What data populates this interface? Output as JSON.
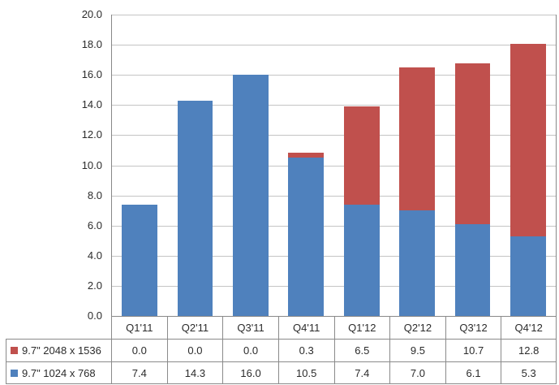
{
  "chart_data": {
    "type": "bar",
    "stacked": true,
    "title": "",
    "xlabel": "",
    "ylabel": "",
    "categories": [
      "Q1'11",
      "Q2'11",
      "Q3'11",
      "Q4'11",
      "Q1'12",
      "Q2'12",
      "Q3'12",
      "Q4'12"
    ],
    "series": [
      {
        "name": "9.7\" 2048 x 1536",
        "color": "#C0504D",
        "stack_position": "top",
        "values": [
          0.0,
          0.0,
          0.0,
          0.3,
          6.5,
          9.5,
          10.7,
          12.8
        ]
      },
      {
        "name": "9.7\" 1024 x 768",
        "color": "#4F81BD",
        "stack_position": "bottom",
        "values": [
          7.4,
          14.3,
          16.0,
          10.5,
          7.4,
          7.0,
          6.1,
          5.3
        ]
      }
    ],
    "ylim": [
      0,
      20
    ],
    "yticks": [
      0,
      2,
      4,
      6,
      8,
      10,
      12,
      14,
      16,
      18,
      20
    ],
    "ytick_labels": [
      "0.0",
      "2.0",
      "4.0",
      "6.0",
      "8.0",
      "10.0",
      "12.0",
      "14.0",
      "16.0",
      "18.0",
      "20.0"
    ],
    "grid": true,
    "legend_position": "data-table-left",
    "value_decimals": 1
  },
  "colors": {
    "background": "#FFFFFF",
    "grid_line": "#C4C4C4",
    "axis_line": "#878787",
    "table_border": "#8A8A8A",
    "text": "#2B2B2B"
  }
}
